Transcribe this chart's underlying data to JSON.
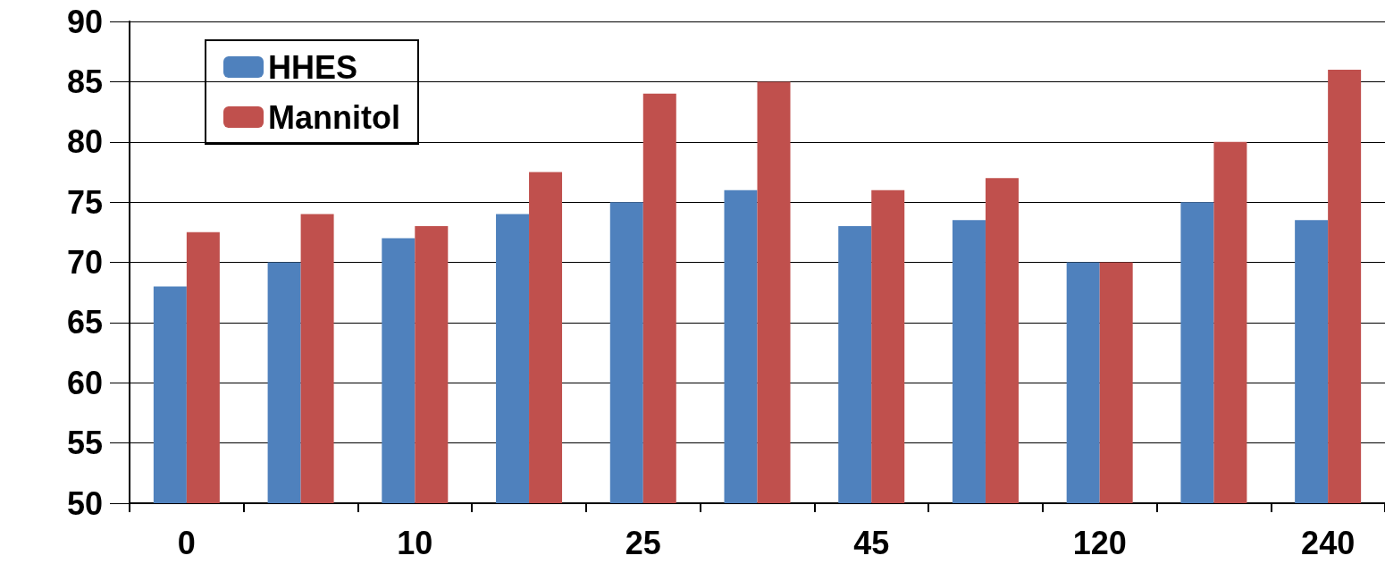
{
  "chart_data": {
    "type": "bar",
    "categories": [
      "0",
      null,
      "10",
      null,
      "25",
      null,
      "45",
      null,
      "120",
      null,
      "240"
    ],
    "series": [
      {
        "name": "HHES",
        "color": "#4f81bd",
        "values": [
          68,
          70,
          72,
          74,
          75,
          76,
          73,
          73.5,
          70,
          75,
          73.5
        ]
      },
      {
        "name": "Mannitol",
        "color": "#c0504d",
        "values": [
          72.5,
          74,
          73,
          77.5,
          84,
          85,
          76,
          77,
          70,
          80,
          86
        ]
      }
    ],
    "ylim": [
      50,
      90
    ],
    "yticks": [
      50,
      55,
      60,
      65,
      70,
      75,
      80,
      85,
      90
    ],
    "grid": "y",
    "legend": "top left"
  }
}
